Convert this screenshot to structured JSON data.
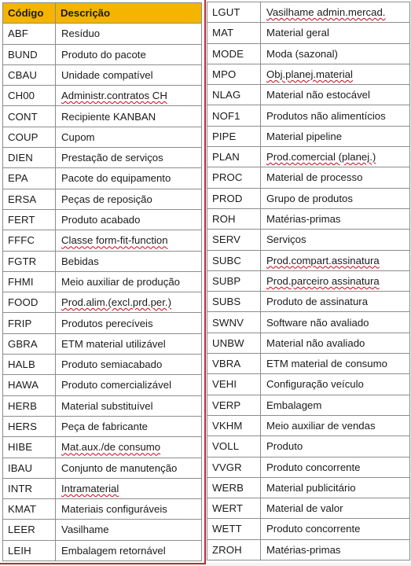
{
  "left_table": {
    "header": {
      "code": "Código",
      "description": "Descrição"
    },
    "rows": [
      {
        "code": "ABF",
        "description": "Resíduo"
      },
      {
        "code": "BUND",
        "description": "Produto do pacote"
      },
      {
        "code": "CBAU",
        "description": "Unidade compatível"
      },
      {
        "code": "CH00",
        "description": "Administr.contratos CH"
      },
      {
        "code": "CONT",
        "description": "Recipiente KANBAN"
      },
      {
        "code": "COUP",
        "description": "Cupom"
      },
      {
        "code": "DIEN",
        "description": "Prestação de serviços"
      },
      {
        "code": "EPA",
        "description": "Pacote do equipamento"
      },
      {
        "code": "ERSA",
        "description": "Peças de reposição"
      },
      {
        "code": "FERT",
        "description": "Produto acabado"
      },
      {
        "code": "FFFC",
        "description": "Classe form-fit-function"
      },
      {
        "code": "FGTR",
        "description": "Bebidas"
      },
      {
        "code": "FHMI",
        "description": "Meio auxiliar de produção"
      },
      {
        "code": "FOOD",
        "description": "Prod.alim.(excl.prd.per.)"
      },
      {
        "code": "FRIP",
        "description": "Produtos perecíveis"
      },
      {
        "code": "GBRA",
        "description": "ETM material utilizável"
      },
      {
        "code": "HALB",
        "description": "Produto semiacabado"
      },
      {
        "code": "HAWA",
        "description": "Produto comercializável"
      },
      {
        "code": "HERB",
        "description": "Material substituível"
      },
      {
        "code": "HERS",
        "description": "Peça de fabricante"
      },
      {
        "code": "HIBE",
        "description": "Mat.aux./de consumo"
      },
      {
        "code": "IBAU",
        "description": "Conjunto de manutenção"
      },
      {
        "code": "INTR",
        "description": "Intramaterial"
      },
      {
        "code": "KMAT",
        "description": "Materiais configuráveis"
      },
      {
        "code": "LEER",
        "description": "Vasilhame"
      },
      {
        "code": "LEIH",
        "description": "Embalagem retornável"
      }
    ]
  },
  "right_table": {
    "rows": [
      {
        "code": "LGUT",
        "description": "Vasilhame admin.mercad."
      },
      {
        "code": "MAT",
        "description": "Material geral"
      },
      {
        "code": "MODE",
        "description": "Moda (sazonal)"
      },
      {
        "code": "MPO",
        "description": "Obj.planej.material"
      },
      {
        "code": "NLAG",
        "description": "Material não estocável"
      },
      {
        "code": "NOF1",
        "description": "Produtos não alimentícios"
      },
      {
        "code": "PIPE",
        "description": "Material pipeline"
      },
      {
        "code": "PLAN",
        "description": "Prod.comercial (planej.)"
      },
      {
        "code": "PROC",
        "description": "Material de processo"
      },
      {
        "code": "PROD",
        "description": "Grupo de produtos"
      },
      {
        "code": "ROH",
        "description": "Matérias-primas"
      },
      {
        "code": "SERV",
        "description": "Serviços"
      },
      {
        "code": "SUBC",
        "description": "Prod.compart.assinatura"
      },
      {
        "code": "SUBP",
        "description": "Prod.parceiro assinatura"
      },
      {
        "code": "SUBS",
        "description": "Produto de assinatura"
      },
      {
        "code": "SWNV",
        "description": "Software não avaliado"
      },
      {
        "code": "UNBW",
        "description": "Material não avaliado"
      },
      {
        "code": "VBRA",
        "description": "ETM material de consumo"
      },
      {
        "code": "VEHI",
        "description": "Configuração veículo"
      },
      {
        "code": "VERP",
        "description": "Embalagem"
      },
      {
        "code": "VKHM",
        "description": "Meio auxiliar de vendas"
      },
      {
        "code": "VOLL",
        "description": "Produto"
      },
      {
        "code": "VVGR",
        "description": "Produto concorrente"
      },
      {
        "code": "WERB",
        "description": "Material publicitário"
      },
      {
        "code": "WERT",
        "description": "Material de valor"
      },
      {
        "code": "WETT",
        "description": "Produto concorrente"
      },
      {
        "code": "ZROH",
        "description": "Matérias-primas"
      }
    ]
  },
  "colors": {
    "header_background": "#f5b400",
    "left_panel_border": "#b4303a",
    "grid_line": "#8c8c8c",
    "spellcheck_underline": "#d0021b"
  }
}
